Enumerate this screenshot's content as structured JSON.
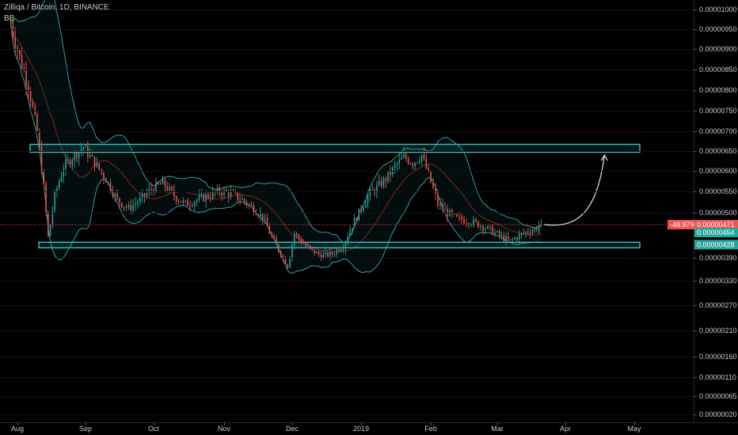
{
  "header": {
    "title": "Zilliqa / Bitcoin, 1D, BINANCE",
    "indicator": "BB"
  },
  "colors": {
    "up": "#26a69a",
    "down": "#ef5350",
    "bb_band": "#2fb3b6",
    "bb_mid": "#8f2a2a",
    "zone": "#3dbfbf",
    "price_line": "#e23b3b",
    "badge_red": "#ef5350",
    "badge_teal": "#26a69a"
  },
  "chart_data": {
    "type": "candlestick",
    "title": "Zilliqa / Bitcoin, 1D, BINANCE",
    "y_ticks": [
      "0.00001000",
      "0.00000950",
      "0.00000900",
      "0.00000850",
      "0.00000800",
      "0.00000750",
      "0.00000700",
      "0.00000650",
      "0.00000600",
      "0.00000550",
      "0.00000500",
      "0.00000390",
      "0.00000330",
      "0.00000270",
      "0.00000210",
      "0.00000160",
      "0.00000110",
      "0.00000065",
      "0.00000020"
    ],
    "y_tick_values": [
      1000,
      950,
      900,
      850,
      800,
      750,
      700,
      650,
      600,
      550,
      500,
      390,
      330,
      270,
      210,
      160,
      110,
      65,
      20
    ],
    "y_unit_scale": 1e-08,
    "x_ticks": [
      "Aug",
      "Sep",
      "Oct",
      "Nov",
      "Dec",
      "2019",
      "Feb",
      "Mar",
      "Apr",
      "May"
    ],
    "x_tick_dates": [
      "2018-08-01",
      "2018-09-01",
      "2018-10-01",
      "2018-11-01",
      "2018-12-01",
      "2019-01-01",
      "2019-02-01",
      "2019-03-01",
      "2019-04-01",
      "2019-05-01"
    ],
    "price_path": [
      [
        "2018-07-29",
        960
      ],
      [
        "2018-08-02",
        880
      ],
      [
        "2018-08-06",
        810
      ],
      [
        "2018-08-10",
        700
      ],
      [
        "2018-08-13",
        560
      ],
      [
        "2018-08-15",
        440
      ],
      [
        "2018-08-18",
        540
      ],
      [
        "2018-08-22",
        610
      ],
      [
        "2018-08-27",
        640
      ],
      [
        "2018-08-31",
        660
      ],
      [
        "2018-09-05",
        620
      ],
      [
        "2018-09-10",
        580
      ],
      [
        "2018-09-15",
        530
      ],
      [
        "2018-09-20",
        510
      ],
      [
        "2018-09-25",
        530
      ],
      [
        "2018-09-30",
        555
      ],
      [
        "2018-10-05",
        570
      ],
      [
        "2018-10-10",
        540
      ],
      [
        "2018-10-15",
        520
      ],
      [
        "2018-10-20",
        530
      ],
      [
        "2018-10-25",
        540
      ],
      [
        "2018-10-30",
        550
      ],
      [
        "2018-11-04",
        545
      ],
      [
        "2018-11-09",
        530
      ],
      [
        "2018-11-14",
        510
      ],
      [
        "2018-11-18",
        490
      ],
      [
        "2018-11-22",
        440
      ],
      [
        "2018-11-26",
        400
      ],
      [
        "2018-11-29",
        370
      ],
      [
        "2018-12-02",
        450
      ],
      [
        "2018-12-05",
        430
      ],
      [
        "2018-12-09",
        410
      ],
      [
        "2018-12-14",
        395
      ],
      [
        "2018-12-19",
        400
      ],
      [
        "2018-12-24",
        420
      ],
      [
        "2018-12-27",
        460
      ],
      [
        "2018-12-31",
        500
      ],
      [
        "2019-01-04",
        540
      ],
      [
        "2019-01-08",
        560
      ],
      [
        "2019-01-12",
        580
      ],
      [
        "2019-01-16",
        610
      ],
      [
        "2019-01-20",
        635
      ],
      [
        "2019-01-24",
        620
      ],
      [
        "2019-01-28",
        640
      ],
      [
        "2019-01-31",
        590
      ],
      [
        "2019-02-04",
        520
      ],
      [
        "2019-02-08",
        500
      ],
      [
        "2019-02-12",
        485
      ],
      [
        "2019-02-17",
        480
      ],
      [
        "2019-02-22",
        470
      ],
      [
        "2019-02-27",
        455
      ],
      [
        "2019-03-03",
        440
      ],
      [
        "2019-03-07",
        430
      ],
      [
        "2019-03-11",
        445
      ],
      [
        "2019-03-15",
        455
      ],
      [
        "2019-03-18",
        460
      ],
      [
        "2019-03-21",
        471
      ]
    ],
    "bollinger_bands": true,
    "zones": [
      {
        "name": "resistance",
        "from": 647,
        "to": 667
      },
      {
        "name": "support",
        "from": 417,
        "to": 428
      }
    ],
    "projection_arrow": {
      "from": [
        "2019-03-21",
        471
      ],
      "to": [
        "2019-04-18",
        640
      ]
    },
    "last_price": {
      "label": "0.00000471",
      "change": "-48.97%"
    },
    "lower_badges": [
      "0.00000454",
      "0.00000428"
    ]
  }
}
